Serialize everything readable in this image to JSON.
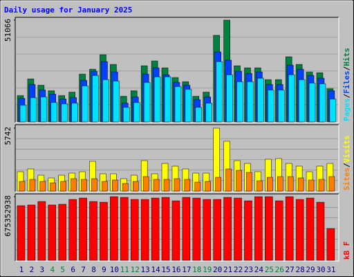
{
  "chart_data": [
    {
      "type": "bar",
      "title": "Daily usage for January 2025",
      "ylim": [
        0,
        51066
      ],
      "yticks": [
        51066
      ],
      "legend_separator": "/",
      "series": [
        {
          "name": "Hits",
          "color": "#008040",
          "values": [
            13200,
            21540,
            18410,
            15630,
            13200,
            14940,
            23970,
            26400,
            33700,
            28830,
            12850,
            15630,
            28140,
            30570,
            27100,
            22230,
            20150,
            12850,
            14940,
            43420,
            51066,
            28140,
            27100,
            27100,
            21190,
            21190,
            32660,
            28830,
            25010,
            24670,
            16680
          ]
        },
        {
          "name": "Files",
          "color": "#0040ff",
          "values": [
            11810,
            18760,
            15980,
            13900,
            11460,
            12160,
            20840,
            25360,
            30220,
            25010,
            9380,
            12510,
            23970,
            27100,
            23620,
            19800,
            18410,
            11120,
            12510,
            35090,
            30920,
            25360,
            24320,
            25010,
            18760,
            18760,
            28490,
            26400,
            23280,
            21890,
            15630
          ]
        },
        {
          "name": "Pages",
          "color": "#00e0ff",
          "values": [
            8340,
            12160,
            12510,
            9730,
            9030,
            9380,
            18060,
            23280,
            21190,
            20500,
            7300,
            9730,
            19800,
            22580,
            22580,
            17720,
            16330,
            7300,
            9380,
            30220,
            23620,
            20150,
            20150,
            21890,
            15980,
            15980,
            23620,
            21190,
            19450,
            19110,
            11460
          ]
        }
      ]
    },
    {
      "type": "bar",
      "ylim": [
        0,
        5742
      ],
      "yticks": [
        5742
      ],
      "legend_separator": "/",
      "series": [
        {
          "name": "Visits",
          "color": "#ffff00",
          "values": [
            1767,
            2019,
            1451,
            1199,
            1451,
            1641,
            1767,
            2713,
            1578,
            1578,
            1136,
            1451,
            2776,
            1578,
            2524,
            2272,
            2019,
            1641,
            1641,
            5742,
            4543,
            2776,
            2524,
            1767,
            2903,
            2966,
            2524,
            2272,
            1767,
            2272,
            2524
          ]
        },
        {
          "name": "Sites",
          "color": "#ff8000",
          "values": [
            883,
            1073,
            883,
            757,
            883,
            1136,
            1073,
            1136,
            883,
            1010,
            694,
            883,
            1325,
            1073,
            1073,
            1136,
            1073,
            820,
            883,
            1262,
            2019,
            1893,
            1704,
            947,
            1262,
            1325,
            1325,
            1199,
            1010,
            1073,
            1325
          ]
        }
      ]
    },
    {
      "type": "bar",
      "ylim": [
        0,
        675352938
      ],
      "yticks": [
        675352938
      ],
      "categories": [
        "1",
        "2",
        "3",
        "4",
        "5",
        "6",
        "7",
        "8",
        "9",
        "10",
        "11",
        "12",
        "13",
        "14",
        "15",
        "16",
        "17",
        "18",
        "19",
        "20",
        "21",
        "22",
        "23",
        "24",
        "25",
        "26",
        "27",
        "28",
        "29",
        "30",
        "31"
      ],
      "label_colors": [
        "#000080",
        "#000080",
        "#000080",
        "#008040",
        "#008040",
        "#000080",
        "#000080",
        "#000080",
        "#000080",
        "#000080",
        "#008040",
        "#008040",
        "#000080",
        "#000080",
        "#000080",
        "#000080",
        "#000080",
        "#008040",
        "#008040",
        "#000080",
        "#000080",
        "#000080",
        "#000080",
        "#000080",
        "#008040",
        "#008040",
        "#000080",
        "#000080",
        "#000080",
        "#000080",
        "#000080"
      ],
      "series": [
        {
          "name": "kB F",
          "color": "#ff0000",
          "values": [
            579900000,
            587300000,
            623900000,
            587300000,
            594600000,
            646000000,
            660700000,
            623900000,
            616600000,
            675352938,
            668000000,
            646000000,
            646000000,
            660700000,
            668000000,
            631300000,
            668000000,
            660700000,
            646000000,
            646000000,
            668000000,
            660700000,
            631300000,
            675352938,
            675352938,
            631300000,
            675352938,
            646000000,
            660700000,
            616600000,
            337700000
          ]
        }
      ]
    }
  ]
}
